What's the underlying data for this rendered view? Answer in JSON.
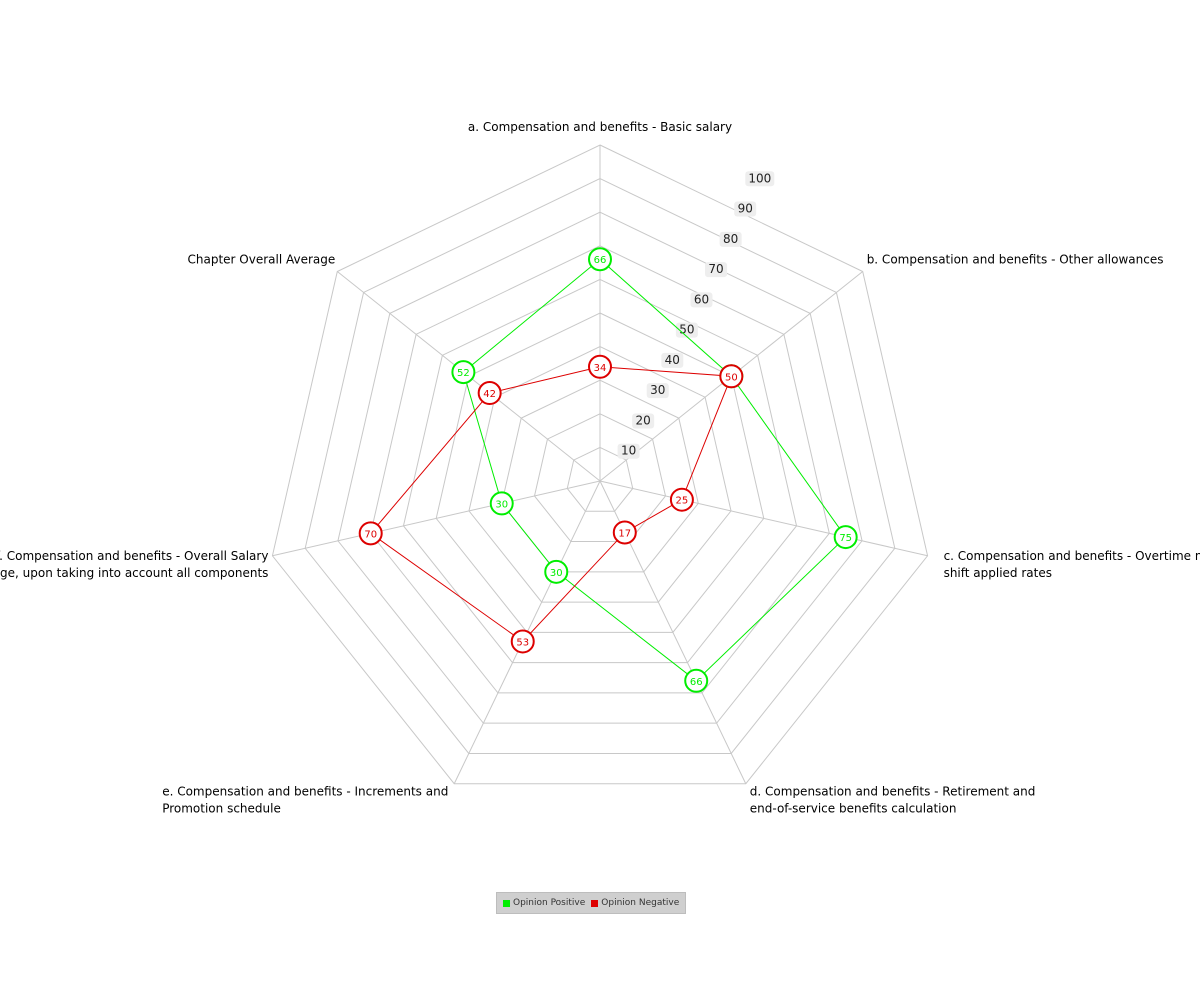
{
  "chart_data": {
    "type": "radar",
    "axes": [
      {
        "label_lines": [
          "a. Compensation and benefits - Basic salary"
        ]
      },
      {
        "label_lines": [
          "b. Compensation and benefits - Other allowances"
        ]
      },
      {
        "label_lines": [
          "c. Compensation and benefits - Overtime  night",
          "shift applied rates"
        ]
      },
      {
        "label_lines": [
          "d. Compensation and benefits - Retirement and",
          "end-of-service benefits calculation"
        ]
      },
      {
        "label_lines": [
          "e. Compensation and benefits - Increments and",
          "Promotion schedule"
        ]
      },
      {
        "label_lines": [
          "f. Compensation and benefits - Overall Salary",
          "package, upon taking into account all components"
        ]
      },
      {
        "label_lines": [
          "Chapter Overall Average"
        ]
      }
    ],
    "ticks": [
      10,
      20,
      30,
      40,
      50,
      60,
      70,
      80,
      90,
      100
    ],
    "range": [
      0,
      100
    ],
    "series": [
      {
        "name": "Opinion Positive",
        "color": "#00ee00",
        "values": [
          66,
          50,
          75,
          66,
          30,
          30,
          52
        ]
      },
      {
        "name": "Opinion Negative",
        "color": "#dd0000",
        "values": [
          34,
          50,
          25,
          17,
          53,
          70,
          42
        ]
      }
    ],
    "grid": true,
    "legend_position": "bottom-center"
  }
}
